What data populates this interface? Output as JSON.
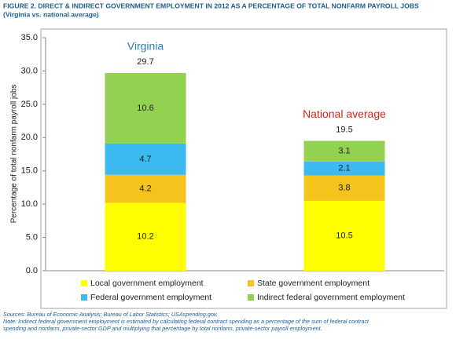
{
  "chart_data": {
    "type": "stacked_bar",
    "title": "FIGURE 2. DIRECT & INDIRECT GOVERNMENT EMPLOYMENT IN 2012 AS A PERCENTAGE OF TOTAL NONFARM PAYROLL JOBS",
    "subtitle": "(Virginia vs. national average)",
    "y_label": "Percentage of total nonfarm payroll jobs",
    "categories": [
      "Virginia",
      "National average"
    ],
    "category_colors": [
      "#2e7fc0",
      "#e3221c"
    ],
    "totals": [
      29.7,
      19.5
    ],
    "series": [
      {
        "name": "Local government employment",
        "color": "#ffff00",
        "values": [
          10.2,
          10.5
        ]
      },
      {
        "name": "State government employment",
        "color": "#f5c31c",
        "values": [
          4.2,
          3.8
        ]
      },
      {
        "name": "Federal government employment",
        "color": "#3cb9ee",
        "values": [
          4.7,
          2.1
        ]
      },
      {
        "name": "Indirect federal government employment",
        "color": "#93d152",
        "values": [
          10.6,
          3.1
        ]
      }
    ],
    "ylim": [
      0,
      35
    ],
    "yticks": [
      {
        "value": 0,
        "label": "0.0"
      },
      {
        "value": 5,
        "label": "5.0"
      },
      {
        "value": 10,
        "label": "10.0"
      },
      {
        "value": 15,
        "label": "15.0"
      },
      {
        "value": 20,
        "label": "20.0"
      },
      {
        "value": 25,
        "label": "25.0"
      },
      {
        "value": 30,
        "label": "30.0"
      },
      {
        "value": 35,
        "label": "35.0"
      }
    ],
    "grid": false,
    "notes": [
      "Sources: Bureau of Economic Analysis; Bureau of Labor Statistics; USAspending.gov.",
      "Note: Indirect federal government employment is estimated by calculating federal contract spending as a percentage of the sum of  federal contract",
      "spending and nonfarm, private-sector GDP and multiplying that percentage by total nonfarm, private-sector payroll employment."
    ]
  }
}
